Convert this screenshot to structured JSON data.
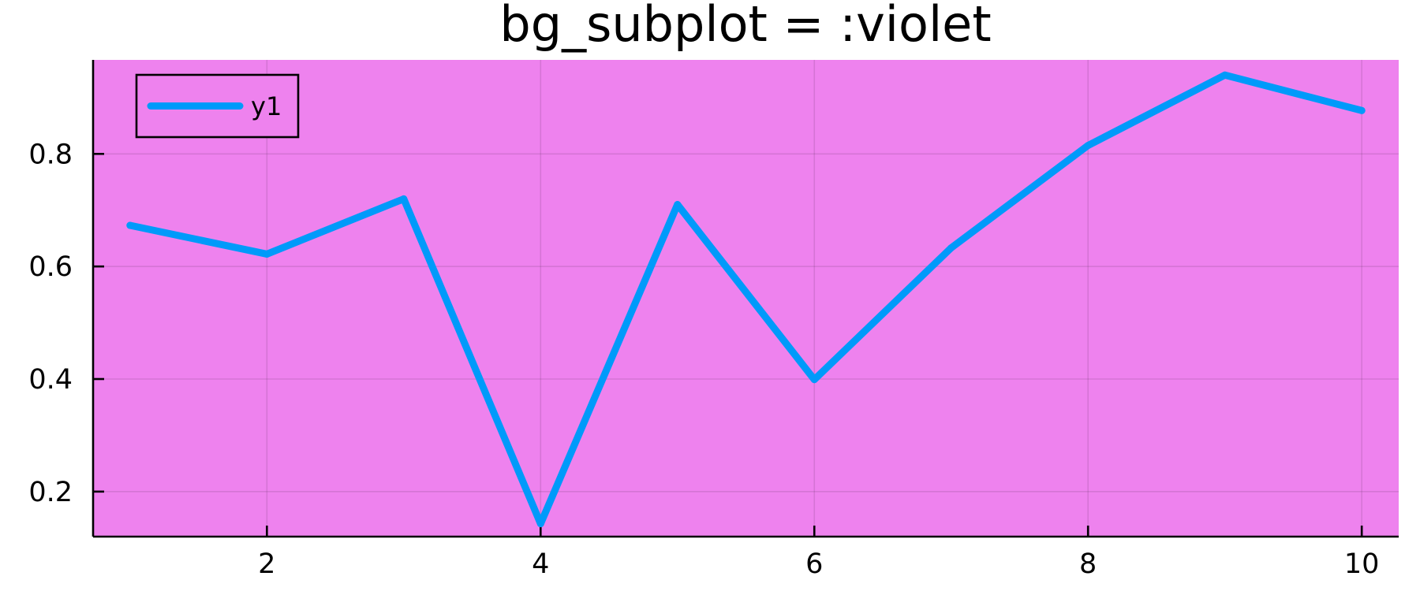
{
  "chart_data": {
    "type": "line",
    "title": "bg_subplot = :violet",
    "xlabel": "",
    "ylabel": "",
    "x": [
      1,
      2,
      3,
      4,
      5,
      6,
      7,
      8,
      9,
      10
    ],
    "series": [
      {
        "name": "y1",
        "values": [
          0.673,
          0.622,
          0.72,
          0.143,
          0.71,
          0.399,
          0.633,
          0.815,
          0.94,
          0.877
        ],
        "color": "#009AFA"
      }
    ],
    "xlim": [
      0.73,
      10.27
    ],
    "ylim": [
      0.12,
      0.967
    ],
    "xticks": [
      2,
      4,
      6,
      8,
      10
    ],
    "yticks": [
      0.2,
      0.4,
      0.6,
      0.8
    ],
    "xtick_labels": [
      "2",
      "4",
      "6",
      "8",
      "10"
    ],
    "ytick_labels": [
      "0.2",
      "0.4",
      "0.6",
      "0.8"
    ],
    "grid": true,
    "legend": "top-left",
    "plot_background": "#EE82EE",
    "page_background": "#FFFFFF"
  }
}
